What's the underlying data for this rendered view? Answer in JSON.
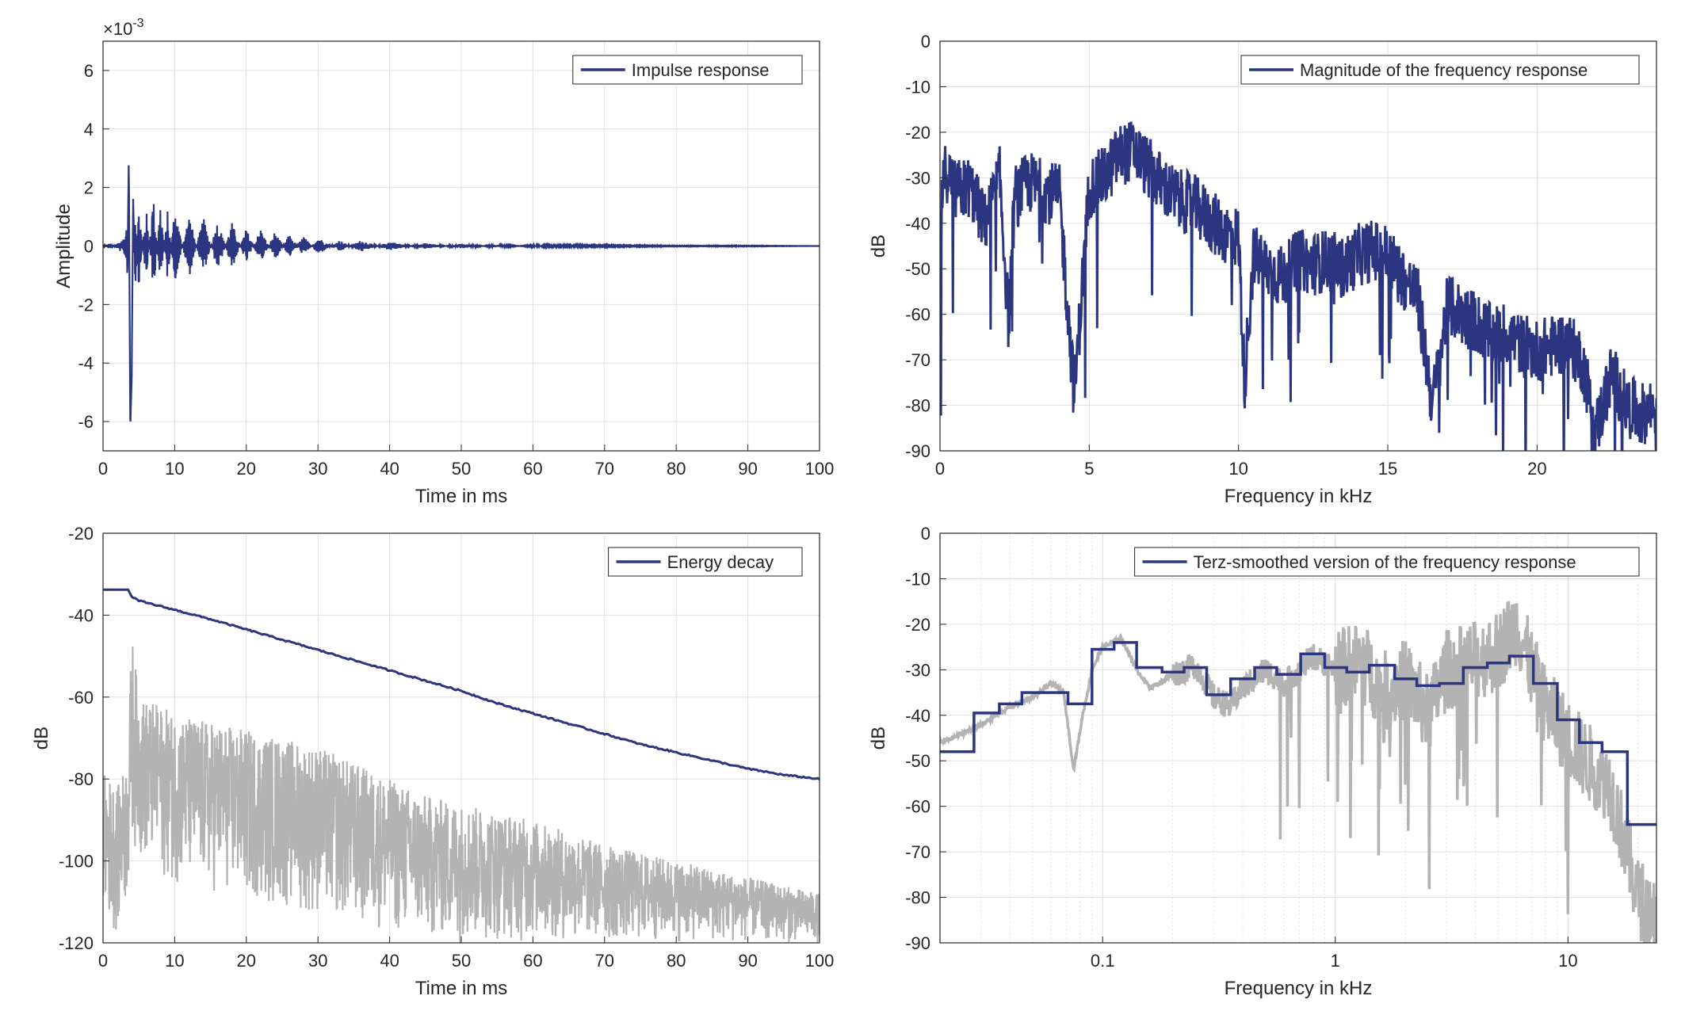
{
  "figure": {
    "background": "#ffffff",
    "line_color": "#2b3580",
    "gray_color": "#b3b3b3"
  },
  "chart_data": [
    {
      "id": "impulse",
      "type": "line",
      "xlabel": "Time in ms",
      "ylabel": "Amplitude",
      "exponent_label": "×10",
      "exponent_power": "-3",
      "xlim": [
        0,
        100
      ],
      "ylim": [
        -7,
        7
      ],
      "xticks": [
        0,
        10,
        20,
        30,
        40,
        50,
        60,
        70,
        80,
        90,
        100
      ],
      "xticklabels": [
        "0",
        "10",
        "20",
        "30",
        "40",
        "50",
        "60",
        "70",
        "80",
        "90",
        "100"
      ],
      "yticks": [
        -6,
        -4,
        -2,
        0,
        2,
        4,
        6
      ],
      "yticklabels": [
        "-6",
        "-4",
        "-2",
        "0",
        "2",
        "4",
        "6"
      ],
      "grid": true,
      "legend": {
        "position": "top-right",
        "entries": [
          "Impulse response"
        ]
      },
      "series": [
        {
          "name": "Impulse response",
          "color": "#2b3580",
          "x": [
            0,
            1,
            2,
            3,
            3.4,
            3.6,
            3.8,
            4.0,
            4.2,
            4.5,
            5,
            6,
            7,
            8,
            9,
            10,
            12,
            14,
            16,
            18,
            20,
            22,
            24,
            26,
            28,
            30,
            33,
            36,
            40,
            45,
            50,
            55,
            60,
            70,
            80,
            90,
            100
          ],
          "y": [
            0,
            0.1,
            -0.1,
            -0.3,
            -1.0,
            3.1,
            -6.3,
            -4.5,
            1.7,
            -1.6,
            1.5,
            -1.4,
            1.8,
            -1.5,
            1.2,
            -1.3,
            1.1,
            -1.0,
            0.9,
            -0.8,
            0.6,
            -0.6,
            0.5,
            -0.4,
            0.35,
            -0.3,
            0.2,
            -0.2,
            0.15,
            -0.1,
            0.08,
            -0.05,
            0.03,
            0.02,
            0.01,
            0.01,
            0
          ]
        }
      ]
    },
    {
      "id": "magnitude",
      "type": "line",
      "xlabel": "Frequency in kHz",
      "ylabel": "dB",
      "xlim": [
        0,
        24
      ],
      "ylim": [
        -90,
        0
      ],
      "xticks": [
        0,
        5,
        10,
        15,
        20
      ],
      "xticklabels": [
        "0",
        "5",
        "10",
        "15",
        "20"
      ],
      "yticks": [
        0,
        -10,
        -20,
        -30,
        -40,
        -50,
        -60,
        -70,
        -80,
        -90
      ],
      "yticklabels": [
        "0",
        "-10",
        "-20",
        "-30",
        "-40",
        "-50",
        "-60",
        "-70",
        "-80",
        "-90"
      ],
      "grid": true,
      "legend": {
        "position": "top-right",
        "entries": [
          "Magnitude of the frequency response"
        ]
      },
      "series": [
        {
          "name": "Magnitude of the frequency response",
          "color": "#2b3580",
          "x": [
            0,
            0.05,
            0.2,
            0.5,
            1,
            1.5,
            2,
            2.3,
            2.5,
            3,
            3.5,
            4,
            4.5,
            5,
            5.5,
            6,
            6.5,
            7,
            7.5,
            8,
            8.5,
            9,
            9.5,
            10,
            10.2,
            10.5,
            11,
            11.5,
            12,
            12.5,
            13,
            13.5,
            14,
            14.5,
            15,
            15.5,
            16,
            16.5,
            17,
            17.5,
            18,
            18.5,
            19,
            19.5,
            20,
            20.5,
            21,
            21.5,
            22,
            22.5,
            23,
            23.5,
            24
          ],
          "y": [
            -82,
            -36,
            -28,
            -33,
            -32,
            -40,
            -30,
            -62,
            -34,
            -31,
            -33,
            -34,
            -78,
            -32,
            -30,
            -25,
            -24,
            -28,
            -32,
            -35,
            -36,
            -39,
            -42,
            -43,
            -75,
            -47,
            -50,
            -52,
            -48,
            -49,
            -48,
            -50,
            -47,
            -46,
            -47,
            -52,
            -56,
            -80,
            -58,
            -60,
            -62,
            -65,
            -64,
            -67,
            -68,
            -67,
            -66,
            -70,
            -85,
            -73,
            -80,
            -82,
            -80
          ]
        }
      ]
    },
    {
      "id": "energy",
      "type": "line",
      "xlabel": "Time in ms",
      "ylabel": "dB",
      "xlim": [
        0,
        100
      ],
      "ylim": [
        -120,
        -20
      ],
      "xticks": [
        0,
        10,
        20,
        30,
        40,
        50,
        60,
        70,
        80,
        90,
        100
      ],
      "xticklabels": [
        "0",
        "10",
        "20",
        "30",
        "40",
        "50",
        "60",
        "70",
        "80",
        "90",
        "100"
      ],
      "yticks": [
        -20,
        -40,
        -60,
        -80,
        -100,
        -120
      ],
      "yticklabels": [
        "-20",
        "-40",
        "-60",
        "-80",
        "-100",
        "-120"
      ],
      "grid": true,
      "legend": {
        "position": "top-right",
        "entries": [
          "Energy decay"
        ]
      },
      "series": [
        {
          "name": "Energy decay",
          "color": "#2b3580",
          "x": [
            0,
            3.5,
            4,
            5,
            10,
            15,
            20,
            25,
            30,
            35,
            40,
            45,
            50,
            55,
            60,
            65,
            70,
            75,
            80,
            85,
            90,
            95,
            100
          ],
          "y": [
            -33.8,
            -33.8,
            -35.5,
            -36.5,
            -38.7,
            -41,
            -43.5,
            -46,
            -48.5,
            -51,
            -53.5,
            -56,
            -58.5,
            -61.5,
            -64,
            -66.5,
            -69,
            -71.5,
            -73.5,
            -75.5,
            -77.5,
            -79,
            -80
          ]
        },
        {
          "name": "",
          "color": "#b3b3b3",
          "x": [
            0,
            2,
            3.5,
            4,
            5,
            8,
            10,
            15,
            20,
            25,
            30,
            35,
            40,
            45,
            50,
            55,
            60,
            65,
            70,
            75,
            80,
            85,
            90,
            95,
            100
          ],
          "y_upper": [
            -78,
            -82,
            -75,
            -44,
            -60,
            -62,
            -64,
            -66,
            -68,
            -70,
            -72,
            -76,
            -80,
            -84,
            -86,
            -88,
            -90,
            -93,
            -96,
            -98,
            -100,
            -102,
            -104,
            -106,
            -108
          ],
          "y_lower": [
            -115,
            -118,
            -110,
            -95,
            -100,
            -104,
            -106,
            -108,
            -110,
            -112,
            -114,
            -116,
            -118,
            -120,
            -120,
            -120,
            -120,
            -120,
            -120,
            -120,
            -120,
            -120,
            -120,
            -120,
            -120
          ]
        }
      ]
    },
    {
      "id": "terz",
      "type": "line",
      "xlabel": "Frequency in kHz",
      "ylabel": "dB",
      "xscale": "log",
      "xlim": [
        0.02,
        24
      ],
      "ylim": [
        -90,
        0
      ],
      "xticks": [
        0.1,
        1,
        10
      ],
      "xticklabels": [
        "0.1",
        "1",
        "10"
      ],
      "yticks": [
        0,
        -10,
        -20,
        -30,
        -40,
        -50,
        -60,
        -70,
        -80,
        -90
      ],
      "yticklabels": [
        "0",
        "-10",
        "-20",
        "-30",
        "-40",
        "-50",
        "-60",
        "-70",
        "-80",
        "-90"
      ],
      "grid": true,
      "legend": {
        "position": "top-right",
        "entries": [
          "Terz-smoothed version of the frequency response"
        ]
      },
      "series": [
        {
          "name": "Terz-smoothed version of the frequency response",
          "color": "#2b3580",
          "step": true,
          "x": [
            0.02,
            0.028,
            0.036,
            0.045,
            0.056,
            0.071,
            0.09,
            0.112,
            0.14,
            0.18,
            0.224,
            0.28,
            0.355,
            0.45,
            0.56,
            0.71,
            0.9,
            1.12,
            1.4,
            1.8,
            2.24,
            2.8,
            3.55,
            4.5,
            5.6,
            7.1,
            9,
            11.2,
            14,
            18,
            24
          ],
          "y": [
            -48,
            -39.5,
            -37.5,
            -35,
            -35,
            -37.5,
            -25.5,
            -24,
            -29.5,
            -30.5,
            -29.5,
            -35.5,
            -32,
            -29.5,
            -31,
            -26.5,
            -29.5,
            -30.5,
            -29,
            -32,
            -33.5,
            -33,
            -29.5,
            -28.5,
            -27,
            -33,
            -41,
            -46,
            -48,
            -64,
            -64
          ]
        },
        {
          "name": "",
          "color": "#b3b3b3",
          "x": [
            0.02,
            0.03,
            0.04,
            0.05,
            0.06,
            0.068,
            0.075,
            0.082,
            0.09,
            0.1,
            0.12,
            0.14,
            0.16,
            0.2,
            0.25,
            0.3,
            0.35,
            0.4,
            0.5,
            0.6,
            0.8,
            1,
            1.3,
            1.6,
            2,
            2.5,
            3,
            4,
            5,
            6,
            7,
            8,
            10,
            12,
            15,
            18,
            20,
            24
          ],
          "y": [
            -46,
            -42,
            -38,
            -36,
            -33,
            -35,
            -52,
            -40,
            -30,
            -25,
            -23,
            -30,
            -34,
            -31,
            -29,
            -36,
            -38,
            -34,
            -30,
            -33,
            -27,
            -30,
            -28,
            -35,
            -32,
            -40,
            -30,
            -28,
            -26,
            -20,
            -30,
            -38,
            -45,
            -50,
            -55,
            -70,
            -80,
            -84
          ]
        }
      ]
    }
  ]
}
